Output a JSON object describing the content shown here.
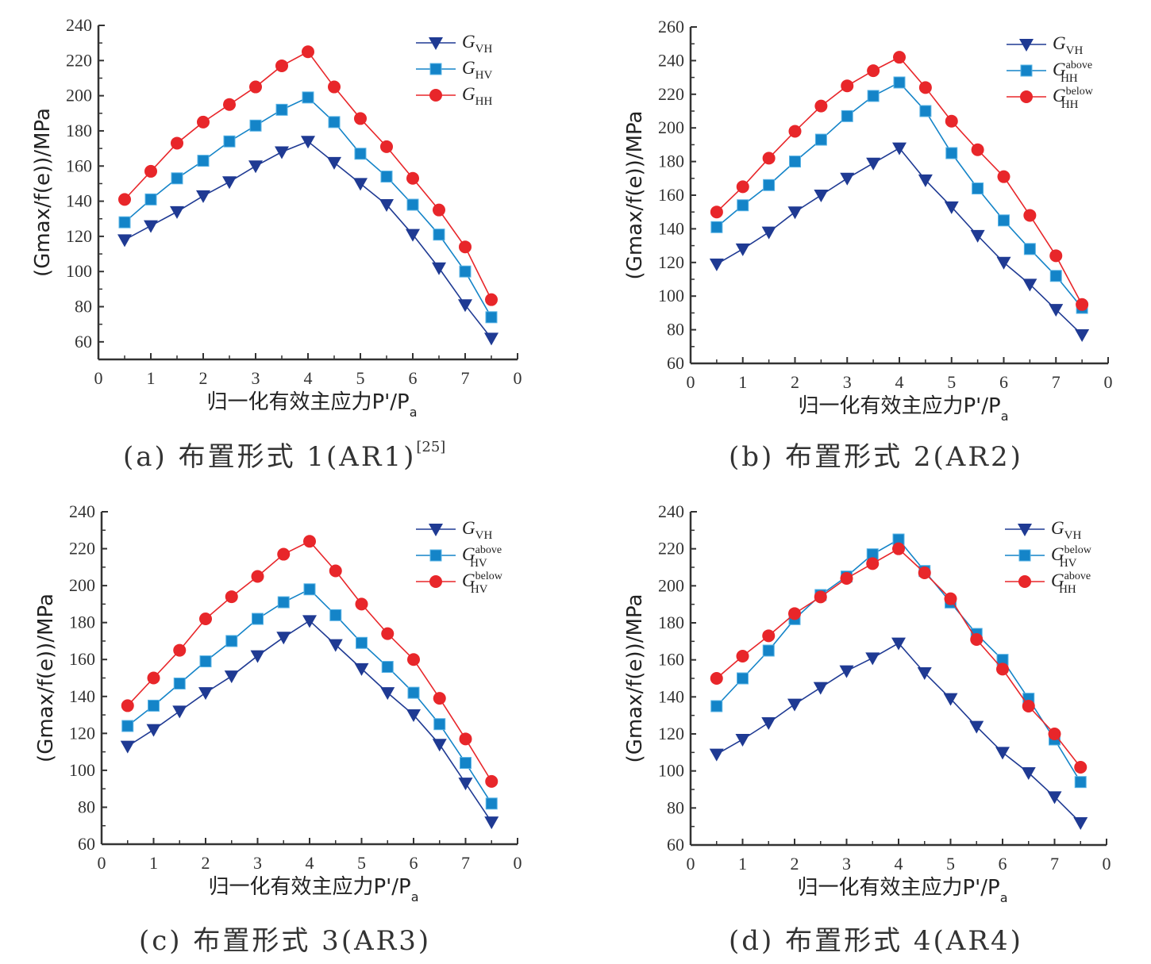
{
  "figure": {
    "panels": [
      {
        "caption_prefix": "(a) 布置形式 1(AR1)",
        "caption_ref": "[25]"
      },
      {
        "caption_prefix": "(b) 布置形式 2(AR2)",
        "caption_ref": ""
      },
      {
        "caption_prefix": "(c) 布置形式 3(AR3)",
        "caption_ref": ""
      },
      {
        "caption_prefix": "(d) 布置形式 4(AR4)",
        "caption_ref": ""
      }
    ],
    "colors": {
      "vh": "#1f3a93",
      "hv_or_above": "#1484c8",
      "hh_or_below": "#e8262a"
    }
  },
  "chart_data": [
    {
      "type": "line",
      "title": "(a) 布置形式 1(AR1)[25]",
      "xlabel": "归一化有效主应力P'/Pa",
      "ylabel": "(Gmax/f(e))/MPa",
      "x": [
        0.5,
        1,
        1.5,
        2,
        2.5,
        3,
        3.5,
        4,
        4.5,
        5,
        5.5,
        6,
        6.5,
        7,
        7.5
      ],
      "xlim": [
        0,
        8
      ],
      "x_tick_labels": [
        "0",
        "1",
        "2",
        "3",
        "4",
        "5",
        "6",
        "7",
        "0"
      ],
      "ylim": [
        50,
        240
      ],
      "y_ticks": [
        60,
        80,
        100,
        120,
        140,
        160,
        180,
        200,
        220,
        240
      ],
      "legend_position": "top-right",
      "series": [
        {
          "name": "G_VH",
          "label_main": "G",
          "label_sub": "VH",
          "label_sup": "",
          "marker": "triangle-down",
          "color": "#1f3a93",
          "values": [
            118,
            126,
            134,
            143,
            151,
            160,
            168,
            174,
            162,
            150,
            138,
            121,
            102,
            81,
            62
          ]
        },
        {
          "name": "G_HV",
          "label_main": "G",
          "label_sub": "HV",
          "label_sup": "",
          "marker": "square",
          "color": "#1484c8",
          "values": [
            128,
            141,
            153,
            163,
            174,
            183,
            192,
            199,
            185,
            167,
            154,
            138,
            121,
            100,
            74
          ]
        },
        {
          "name": "G_HH",
          "label_main": "G",
          "label_sub": "HH",
          "label_sup": "",
          "marker": "circle",
          "color": "#e8262a",
          "values": [
            141,
            157,
            173,
            185,
            195,
            205,
            217,
            225,
            205,
            187,
            171,
            153,
            135,
            114,
            84
          ]
        }
      ]
    },
    {
      "type": "line",
      "title": "(b) 布置形式 2(AR2)",
      "xlabel": "归一化有效主应力P'/Pa",
      "ylabel": "(Gmax/f(e))/MPa",
      "x": [
        0.5,
        1,
        1.5,
        2,
        2.5,
        3,
        3.5,
        4,
        4.5,
        5,
        5.5,
        6,
        6.5,
        7,
        7.5
      ],
      "xlim": [
        0,
        8
      ],
      "x_tick_labels": [
        "0",
        "1",
        "2",
        "3",
        "4",
        "5",
        "6",
        "7",
        "0"
      ],
      "ylim": [
        60,
        260
      ],
      "y_ticks": [
        60,
        80,
        100,
        120,
        140,
        160,
        180,
        200,
        220,
        240,
        260
      ],
      "legend_position": "top-right",
      "series": [
        {
          "name": "G_VH",
          "label_main": "G",
          "label_sub": "VH",
          "label_sup": "",
          "marker": "triangle-down",
          "color": "#1f3a93",
          "values": [
            119,
            128,
            138,
            150,
            160,
            170,
            179,
            188,
            169,
            153,
            136,
            120,
            107,
            92,
            77
          ]
        },
        {
          "name": "G_HH^above",
          "label_main": "G",
          "label_sub": "HH",
          "label_sup": "above",
          "marker": "square",
          "color": "#1484c8",
          "values": [
            141,
            154,
            166,
            180,
            193,
            207,
            219,
            227,
            210,
            185,
            164,
            145,
            128,
            112,
            93
          ]
        },
        {
          "name": "G_HH^below",
          "label_main": "G",
          "label_sub": "HH",
          "label_sup": "below",
          "marker": "circle",
          "color": "#e8262a",
          "values": [
            150,
            165,
            182,
            198,
            213,
            225,
            234,
            242,
            224,
            204,
            187,
            171,
            148,
            124,
            95
          ]
        }
      ]
    },
    {
      "type": "line",
      "title": "(c) 布置形式 3(AR3)",
      "xlabel": "归一化有效主应力P'/Pa",
      "ylabel": "(Gmax/f(e))/MPa",
      "x": [
        0.5,
        1,
        1.5,
        2,
        2.5,
        3,
        3.5,
        4,
        4.5,
        5,
        5.5,
        6,
        6.5,
        7,
        7.5
      ],
      "xlim": [
        0,
        8
      ],
      "x_tick_labels": [
        "0",
        "1",
        "2",
        "3",
        "4",
        "5",
        "6",
        "7",
        "0"
      ],
      "ylim": [
        60,
        240
      ],
      "y_ticks": [
        60,
        80,
        100,
        120,
        140,
        160,
        180,
        200,
        220,
        240
      ],
      "legend_position": "top-right",
      "series": [
        {
          "name": "G_VH",
          "label_main": "G",
          "label_sub": "VH",
          "label_sup": "",
          "marker": "triangle-down",
          "color": "#1f3a93",
          "values": [
            113,
            122,
            132,
            142,
            151,
            162,
            172,
            181,
            168,
            155,
            142,
            130,
            114,
            93,
            72
          ]
        },
        {
          "name": "G_HV^above",
          "label_main": "G",
          "label_sub": "HV",
          "label_sup": "above",
          "marker": "square",
          "color": "#1484c8",
          "values": [
            124,
            135,
            147,
            159,
            170,
            182,
            191,
            198,
            184,
            169,
            156,
            142,
            125,
            104,
            82
          ]
        },
        {
          "name": "G_HV^below",
          "label_main": "G",
          "label_sub": "HV",
          "label_sup": "below",
          "marker": "circle",
          "color": "#e8262a",
          "values": [
            135,
            150,
            165,
            182,
            194,
            205,
            217,
            224,
            208,
            190,
            174,
            160,
            139,
            117,
            94
          ]
        }
      ]
    },
    {
      "type": "line",
      "title": "(d) 布置形式 4(AR4)",
      "xlabel": "归一化有效主应力P'/Pa",
      "ylabel": "(Gmax/f(e))/MPa",
      "x": [
        0.5,
        1,
        1.5,
        2,
        2.5,
        3,
        3.5,
        4,
        4.5,
        5,
        5.5,
        6,
        6.5,
        7,
        7.5
      ],
      "xlim": [
        0,
        8
      ],
      "x_tick_labels": [
        "0",
        "1",
        "2",
        "3",
        "4",
        "5",
        "6",
        "7",
        "0"
      ],
      "ylim": [
        60,
        240
      ],
      "y_ticks": [
        60,
        80,
        100,
        120,
        140,
        160,
        180,
        200,
        220,
        240
      ],
      "legend_position": "top-right",
      "series": [
        {
          "name": "G_VH",
          "label_main": "G",
          "label_sub": "VH",
          "label_sup": "",
          "marker": "triangle-down",
          "color": "#1f3a93",
          "values": [
            109,
            117,
            126,
            136,
            145,
            154,
            161,
            169,
            153,
            139,
            124,
            110,
            99,
            86,
            72
          ]
        },
        {
          "name": "G_HV^below",
          "label_main": "G",
          "label_sub": "HV",
          "label_sup": "below",
          "marker": "square",
          "color": "#1484c8",
          "values": [
            135,
            150,
            165,
            182,
            195,
            205,
            217,
            225,
            208,
            191,
            174,
            160,
            139,
            117,
            94
          ]
        },
        {
          "name": "G_HH^above",
          "label_main": "G",
          "label_sub": "HH",
          "label_sup": "above",
          "marker": "circle",
          "color": "#e8262a",
          "values": [
            150,
            162,
            173,
            185,
            194,
            204,
            212,
            220,
            207,
            193,
            171,
            155,
            135,
            120,
            102
          ]
        }
      ]
    }
  ]
}
